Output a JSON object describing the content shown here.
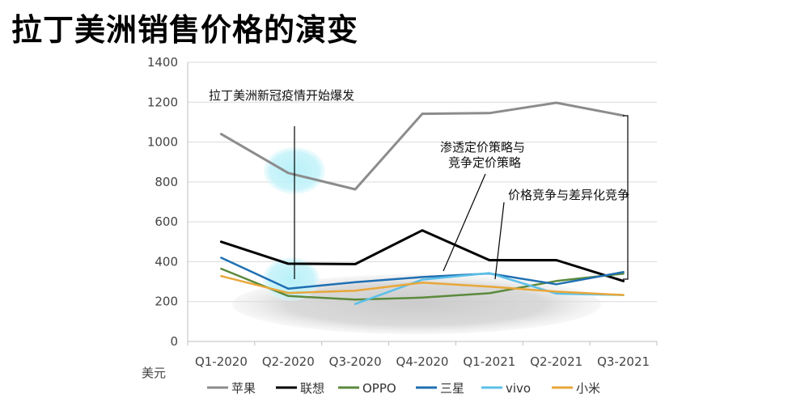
{
  "title": "拉丁美洲销售价格的演变",
  "chart_data": {
    "type": "line",
    "ylabel": "美元",
    "ylim": [
      0,
      1400
    ],
    "yticks": [
      0,
      200,
      400,
      600,
      800,
      1000,
      1200,
      1400
    ],
    "grid": true,
    "legend_position": "bottom",
    "categories": [
      "Q1-2020",
      "Q2-2020",
      "Q3-2020",
      "Q4-2020",
      "Q1-2021",
      "Q2-2021",
      "Q3-2021"
    ],
    "series": [
      {
        "name": "苹果",
        "color": "#8c8c8c",
        "values": [
          1040,
          845,
          763,
          1142,
          1145,
          1197,
          1133
        ]
      },
      {
        "name": "联想",
        "color": "#000000",
        "values": [
          500,
          390,
          388,
          557,
          408,
          408,
          303
        ]
      },
      {
        "name": "OPPO",
        "color": "#5b8a3c",
        "values": [
          365,
          228,
          210,
          220,
          242,
          303,
          340
        ]
      },
      {
        "name": "三星",
        "color": "#1f6fb2",
        "values": [
          420,
          265,
          297,
          323,
          341,
          287,
          348
        ]
      },
      {
        "name": "vivo",
        "color": "#5bc0e8",
        "values": [
          null,
          null,
          188,
          310,
          343,
          240,
          233
        ]
      },
      {
        "name": "小米",
        "color": "#e8a73a",
        "values": [
          328,
          243,
          255,
          295,
          275,
          250,
          233
        ]
      }
    ],
    "annotations": [
      {
        "text": "拉丁美洲新冠疫情开始爆发"
      },
      {
        "text": "渗透定价策略与",
        "text2": "竞争定价策略"
      },
      {
        "text": "价格竞争与差异化竞争"
      }
    ]
  }
}
